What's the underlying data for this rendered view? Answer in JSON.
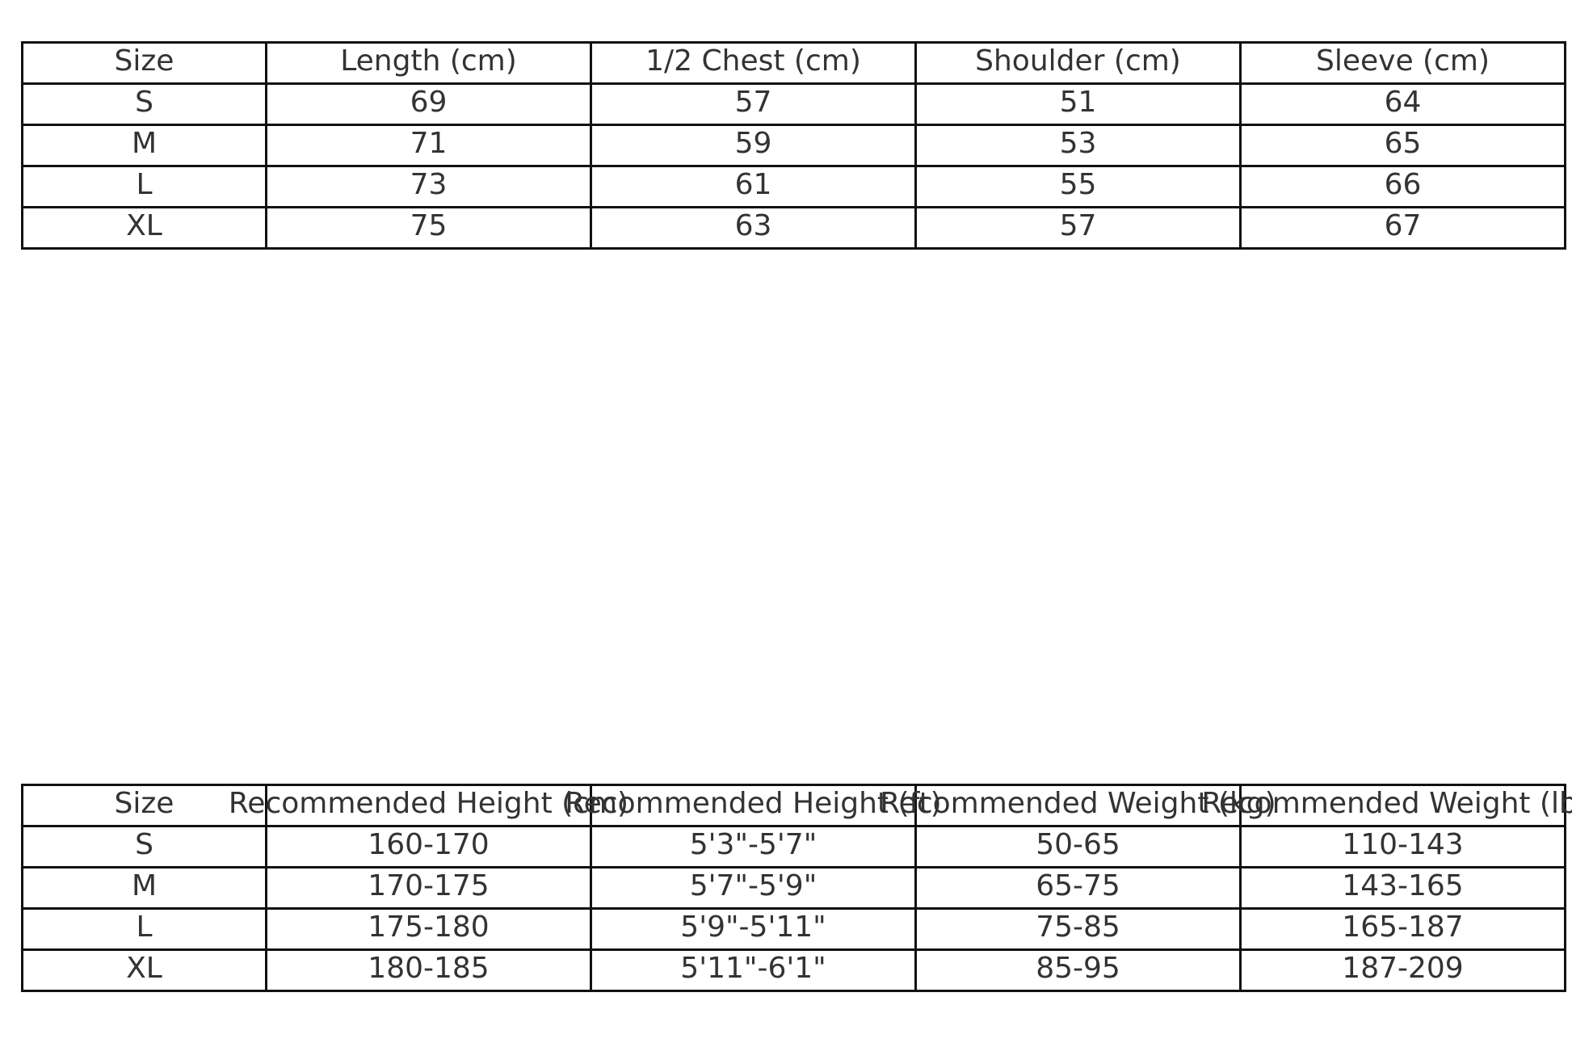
{
  "measurements_table": {
    "headers": [
      "Size",
      "Length (cm)",
      "1/2 Chest (cm)",
      "Shoulder (cm)",
      "Sleeve (cm)"
    ],
    "rows": [
      [
        "S",
        "69",
        "57",
        "51",
        "64"
      ],
      [
        "M",
        "71",
        "59",
        "53",
        "65"
      ],
      [
        "L",
        "73",
        "61",
        "55",
        "66"
      ],
      [
        "XL",
        "75",
        "63",
        "57",
        "67"
      ]
    ]
  },
  "recommendation_table": {
    "headers": [
      "Size",
      "Recommended Height (cm)",
      "Recommended Height (ft)",
      "Recommended Weight (kg)",
      "Recommended Weight (lbs)"
    ],
    "rows": [
      [
        "S",
        "160-170",
        "5'3\"-5'7\"",
        "50-65",
        "110-143"
      ],
      [
        "M",
        "170-175",
        "5'7\"-5'9\"",
        "65-75",
        "143-165"
      ],
      [
        "L",
        "175-180",
        "5'9\"-5'11\"",
        "75-85",
        "165-187"
      ],
      [
        "XL",
        "180-185",
        "5'11\"-6'1\"",
        "85-95",
        "187-209"
      ]
    ]
  }
}
